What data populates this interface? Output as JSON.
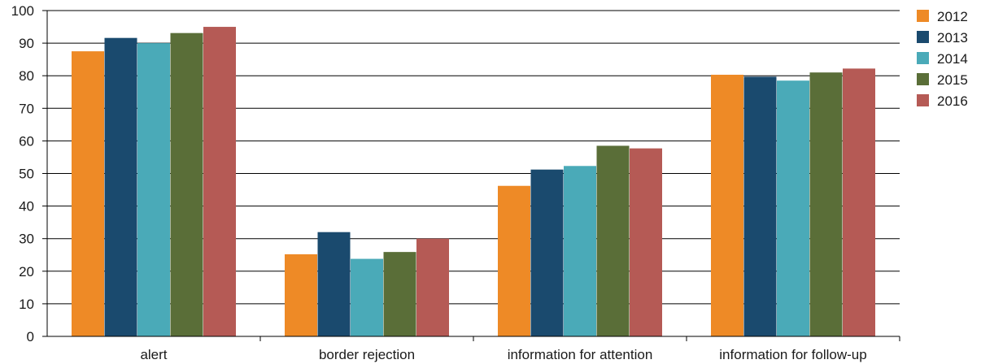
{
  "chart_data": {
    "type": "bar",
    "categories": [
      "alert",
      "border rejection",
      "information for attention",
      "information for follow-up"
    ],
    "series": [
      {
        "name": "2012",
        "color": "#ee8a26",
        "values": [
          87.5,
          25.2,
          46.2,
          80.3
        ]
      },
      {
        "name": "2013",
        "color": "#1a4a6e",
        "values": [
          91.6,
          32.0,
          51.2,
          79.7
        ]
      },
      {
        "name": "2014",
        "color": "#4aaab8",
        "values": [
          90.0,
          23.8,
          52.3,
          78.5
        ]
      },
      {
        "name": "2015",
        "color": "#5a6e38",
        "values": [
          93.1,
          25.9,
          58.5,
          81.0
        ]
      },
      {
        "name": "2016",
        "color": "#b55a55",
        "values": [
          95.0,
          30.0,
          57.7,
          82.2
        ]
      }
    ],
    "ylim": [
      0,
      100
    ],
    "yticks": [
      "0",
      "10",
      "20",
      "30",
      "40",
      "50",
      "60",
      "70",
      "80",
      "90",
      "100"
    ],
    "title": "",
    "xlabel": "",
    "ylabel": "",
    "grid": true,
    "legend_position": "right"
  }
}
